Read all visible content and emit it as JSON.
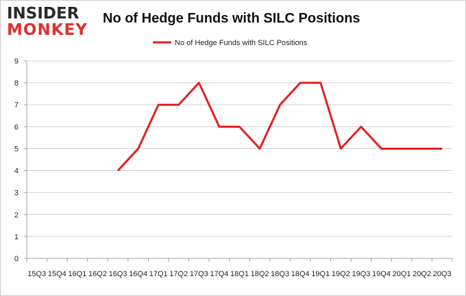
{
  "logo": {
    "line1": "INSIDER",
    "line2": "MONKEY"
  },
  "colors": {
    "series": "#e41e1e",
    "grid": "#d0d0d0",
    "axis": "#a0a0a0",
    "logo_dark": "#2a2a2a",
    "logo_red": "#e0312f"
  },
  "chart_data": {
    "type": "line",
    "title": "No of Hedge Funds with SILC Positions",
    "xlabel": "",
    "ylabel": "",
    "ylim": [
      0,
      9
    ],
    "yticks": [
      0,
      1,
      2,
      3,
      4,
      5,
      6,
      7,
      8,
      9
    ],
    "grid": true,
    "legend": "top-center",
    "categories": [
      "15Q3",
      "15Q4",
      "16Q1",
      "16Q2",
      "16Q3",
      "16Q4",
      "17Q1",
      "17Q2",
      "17Q3",
      "17Q4",
      "18Q1",
      "18Q2",
      "18Q3",
      "18Q4",
      "19Q1",
      "19Q2",
      "19Q3",
      "19Q4",
      "20Q1",
      "20Q2",
      "20Q3"
    ],
    "series": [
      {
        "name": "No of Hedge Funds with SILC Positions",
        "values": [
          null,
          null,
          null,
          null,
          4,
          5,
          7,
          7,
          8,
          6,
          6,
          5,
          7,
          8,
          8,
          5,
          6,
          5,
          5,
          5,
          5
        ]
      }
    ]
  }
}
